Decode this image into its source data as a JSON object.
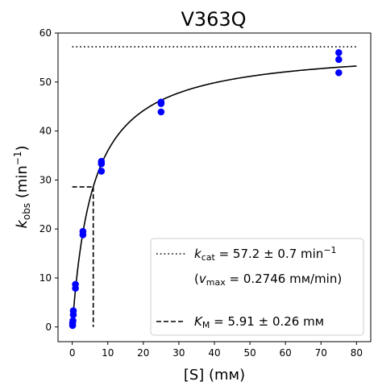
{
  "chart_data": {
    "type": "scatter",
    "title": "V363Q",
    "xlabel": "[S] (mм)",
    "ylabel": {
      "base": "k",
      "sub": "obs",
      "unit_open": " (min",
      "sup": "−1",
      "unit_close": ")"
    },
    "xlim": [
      -4,
      84
    ],
    "ylim": [
      -3,
      60
    ],
    "xticks": [
      0,
      10,
      20,
      30,
      40,
      50,
      60,
      70,
      80
    ],
    "yticks": [
      0,
      10,
      20,
      30,
      40,
      50,
      60
    ],
    "grid": false,
    "legend_position": "lower-right",
    "colors": {
      "points": "#0000ff",
      "fit": "#000000"
    },
    "points": [
      {
        "x": 0.1,
        "y": 0.3
      },
      {
        "x": 0.1,
        "y": 0.8
      },
      {
        "x": 0.2,
        "y": 1.3
      },
      {
        "x": 0.3,
        "y": 2.5
      },
      {
        "x": 0.3,
        "y": 3.3
      },
      {
        "x": 0.9,
        "y": 7.9
      },
      {
        "x": 0.9,
        "y": 8.7
      },
      {
        "x": 3.0,
        "y": 18.8
      },
      {
        "x": 3.0,
        "y": 19.5
      },
      {
        "x": 8.2,
        "y": 31.8
      },
      {
        "x": 8.2,
        "y": 33.3
      },
      {
        "x": 8.2,
        "y": 33.8
      },
      {
        "x": 25,
        "y": 43.9
      },
      {
        "x": 25,
        "y": 45.6
      },
      {
        "x": 25,
        "y": 45.9
      },
      {
        "x": 75,
        "y": 51.9
      },
      {
        "x": 75,
        "y": 54.6
      },
      {
        "x": 75,
        "y": 56.0
      }
    ],
    "fit": {
      "kcat": 57.2,
      "km": 5.91,
      "x_range": [
        0,
        80
      ]
    },
    "kcat_line": {
      "y": 57.2,
      "x_range": [
        0,
        80
      ]
    },
    "km_line": {
      "x": 5.91,
      "y": 28.6
    },
    "legend": {
      "kcat": {
        "k": "k",
        "sub": "cat",
        "rest": " = 57.2 ± 0.7 min",
        "sup": "−1"
      },
      "vmax": {
        "open": "(",
        "v": "v",
        "sub": "max",
        "rest": " = 0.2746 mм/min)"
      },
      "km": {
        "k": "K",
        "sub": "M",
        "rest": " = 5.91 ± 0.26 mм"
      }
    }
  }
}
